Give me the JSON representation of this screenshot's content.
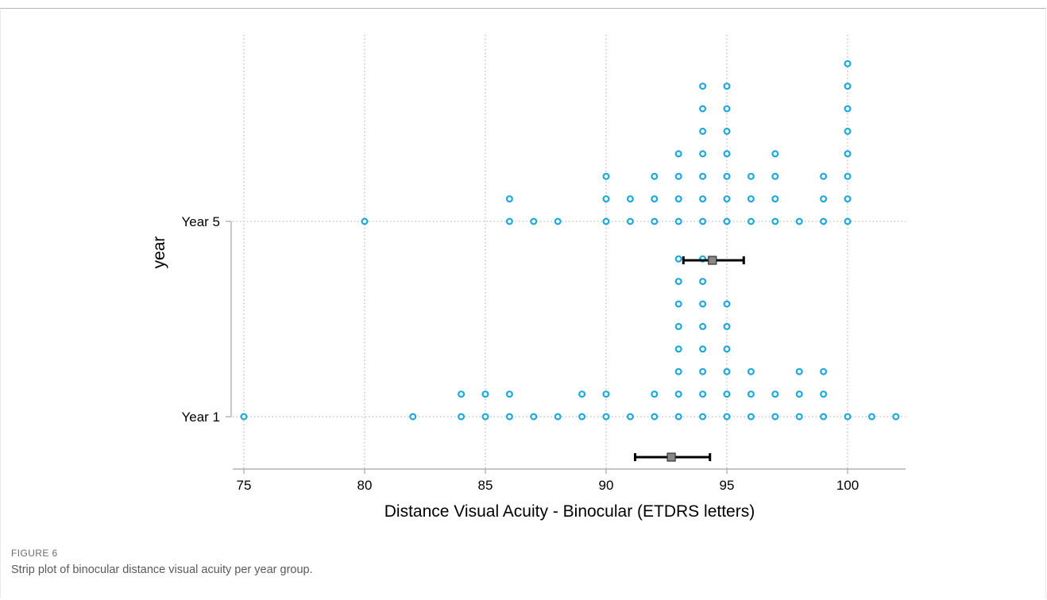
{
  "figure": {
    "label": "FIGURE 6",
    "caption": "Strip plot of binocular distance visual acuity per year group."
  },
  "chart_data": {
    "type": "scatter",
    "subtype": "strip",
    "title": "",
    "xlabel": "Distance Visual Acuity - Binocular (ETDRS letters)",
    "ylabel": "year",
    "xlim": [
      74.5,
      102.5
    ],
    "xticks": [
      75,
      80,
      85,
      90,
      95,
      100
    ],
    "grid": true,
    "marker_color": "#1fa8d8",
    "errorbar_color": "#000000",
    "mean_marker_color": "#888888",
    "groups": [
      {
        "name": "Year 1",
        "counts": {
          "75": 1,
          "82": 1,
          "84": 2,
          "85": 2,
          "86": 2,
          "87": 1,
          "88": 1,
          "89": 2,
          "90": 2,
          "91": 1,
          "92": 2,
          "93": 8,
          "94": 8,
          "95": 6,
          "96": 3,
          "97": 2,
          "98": 3,
          "99": 3,
          "100": 1,
          "101": 1,
          "102": 1
        },
        "mean": 92.7,
        "ci": [
          91.2,
          94.3
        ]
      },
      {
        "name": "Year 5",
        "counts": {
          "80": 1,
          "86": 2,
          "87": 1,
          "88": 1,
          "90": 3,
          "91": 2,
          "92": 3,
          "93": 4,
          "94": 7,
          "95": 7,
          "96": 3,
          "97": 4,
          "98": 1,
          "99": 3,
          "100": 8
        },
        "mean": 94.4,
        "ci": [
          93.2,
          95.7
        ]
      }
    ]
  }
}
